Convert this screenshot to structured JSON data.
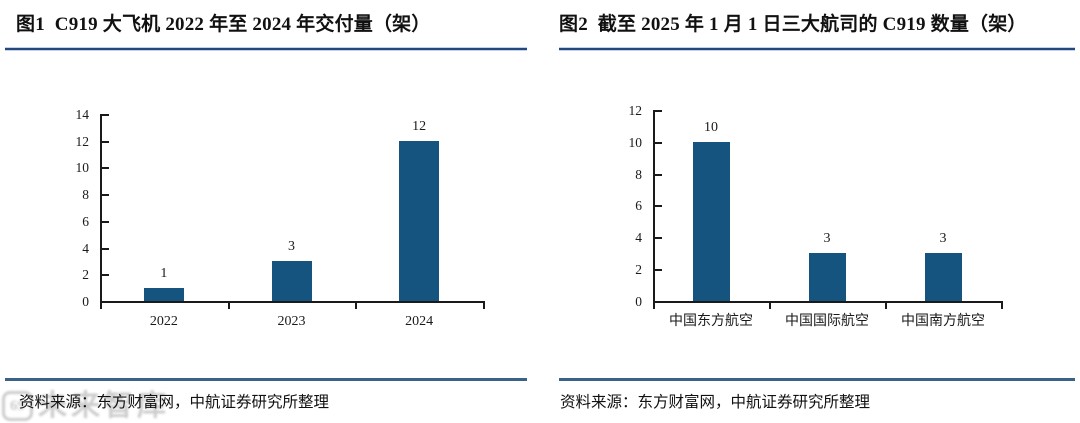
{
  "panels": [
    {
      "title": "图1  C919 大飞机 2022 年至 2024 年交付量（架）",
      "source": "资料来源：东方财富网，中航证券研究所整理"
    },
    {
      "title": "图2  截至 2025 年 1 月 1 日三大航司的 C919 数量（架）",
      "source": "资料来源：东方财富网，中航证券研究所整理"
    }
  ],
  "chart_data": [
    {
      "type": "bar",
      "title": "图1 C919 大飞机 2022 年至 2024 年交付量（架）",
      "categories": [
        "2022",
        "2023",
        "2024"
      ],
      "values": [
        1,
        3,
        12
      ],
      "xlabel": "",
      "ylabel": "",
      "ylim": [
        0,
        14
      ],
      "yticks": [
        0,
        2,
        4,
        6,
        8,
        10,
        12,
        14
      ],
      "bar_color": "#14547E",
      "data_labels": [
        1,
        3,
        12
      ],
      "grid": false,
      "legend": "none"
    },
    {
      "type": "bar",
      "title": "图2 截至 2025 年 1 月 1 日三大航司的 C919 数量（架）",
      "categories": [
        "中国东方航空",
        "中国国际航空",
        "中国南方航空"
      ],
      "values": [
        10,
        3,
        3
      ],
      "xlabel": "",
      "ylabel": "",
      "ylim": [
        0,
        12
      ],
      "yticks": [
        0,
        2,
        4,
        6,
        8,
        10,
        12
      ],
      "bar_color": "#14547E",
      "data_labels": [
        10,
        3,
        3
      ],
      "grid": false,
      "legend": "none"
    }
  ],
  "watermark": {
    "logo_text": "69",
    "text": "未来智库"
  },
  "colors": {
    "bar": "#14547E",
    "axis": "#1a1a1a",
    "title_divider": "#24477E",
    "source_divider": "#3A6186",
    "text": "#111111",
    "watermark": "#c4c4c4"
  }
}
